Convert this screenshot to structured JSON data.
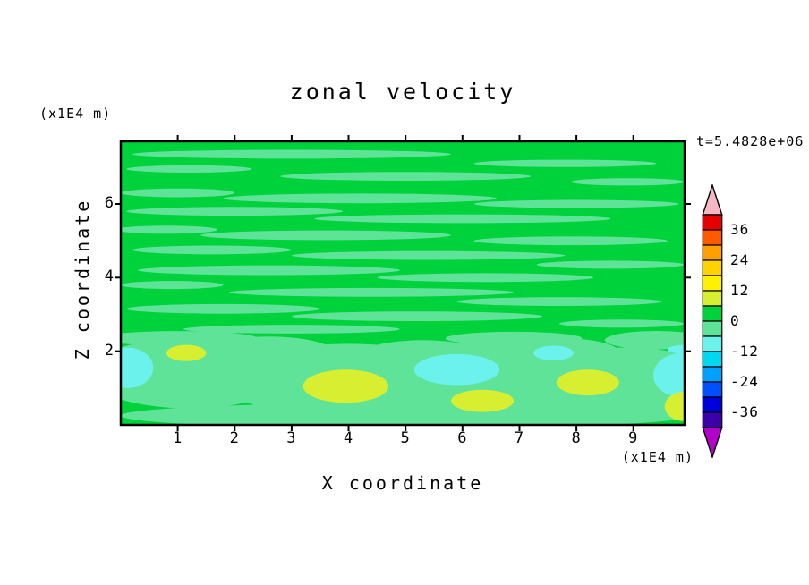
{
  "title": "zonal velocity",
  "time_label": "t=5.4828e+06",
  "axes": {
    "x_label": "X coordinate",
    "x_unit": "(x1E4 m)",
    "y_label": "Z coordinate",
    "y_unit": "(x1E4 m)",
    "x_ticks": [
      1,
      2,
      3,
      4,
      5,
      6,
      7,
      8,
      9
    ],
    "y_ticks": [
      2,
      4,
      6
    ],
    "x_range": [
      0,
      9.9
    ],
    "y_range": [
      0,
      7.7
    ]
  },
  "colorbar": {
    "labels": [
      36,
      24,
      12,
      0,
      -12,
      -24,
      -36
    ],
    "level_step": 6,
    "level_max": 42,
    "level_min": -42,
    "segments": [
      "#e60000",
      "#ff5a00",
      "#ffa000",
      "#ffd200",
      "#fff200",
      "#d8ee30",
      "#00d23c",
      "#5fe398",
      "#6cf2ec",
      "#00d8f0",
      "#00a0ff",
      "#0050ff",
      "#0000dc",
      "#3c00aa"
    ],
    "top_arrow_color": "#f4b8c4",
    "bottom_arrow_color": "#b400c8"
  },
  "chart_data": {
    "type": "filled_contour",
    "title": "zonal velocity",
    "xlabel": "X coordinate (x1E4 m)",
    "ylabel": "Z coordinate (x1E4 m)",
    "x_range": [
      0,
      9.9
    ],
    "z_range": [
      0,
      7.7
    ],
    "level_step": 6,
    "background_band": "0_6",
    "bands": {
      "0_6": "#00d23c",
      "-6_0": "#5fe398",
      "-12_-6": "#6cf2ec",
      "6_12": "#d8ee30"
    },
    "feature_format": [
      "x_center",
      "z_center",
      "rx",
      "rz",
      "band"
    ],
    "features": [
      [
        3.0,
        7.35,
        2.8,
        0.12,
        "-6_0"
      ],
      [
        7.8,
        7.1,
        1.6,
        0.1,
        "-6_0"
      ],
      [
        1.2,
        6.95,
        1.1,
        0.1,
        "-6_0"
      ],
      [
        5.0,
        6.75,
        2.2,
        0.12,
        "-6_0"
      ],
      [
        8.9,
        6.6,
        1.0,
        0.1,
        "-6_0"
      ],
      [
        1.0,
        6.3,
        1.0,
        0.12,
        "-6_0"
      ],
      [
        4.2,
        6.15,
        2.4,
        0.13,
        "-6_0"
      ],
      [
        8.0,
        6.0,
        1.8,
        0.11,
        "-6_0"
      ],
      [
        2.0,
        5.8,
        1.9,
        0.12,
        "-6_0"
      ],
      [
        6.0,
        5.6,
        2.6,
        0.12,
        "-6_0"
      ],
      [
        0.8,
        5.3,
        0.9,
        0.11,
        "-6_0"
      ],
      [
        3.6,
        5.15,
        2.2,
        0.13,
        "-6_0"
      ],
      [
        7.9,
        5.0,
        1.7,
        0.12,
        "-6_0"
      ],
      [
        1.6,
        4.75,
        1.4,
        0.12,
        "-6_0"
      ],
      [
        5.4,
        4.6,
        2.4,
        0.12,
        "-6_0"
      ],
      [
        8.6,
        4.35,
        1.3,
        0.11,
        "-6_0"
      ],
      [
        2.6,
        4.2,
        2.3,
        0.13,
        "-6_0"
      ],
      [
        6.4,
        4.0,
        1.9,
        0.12,
        "-6_0"
      ],
      [
        0.9,
        3.8,
        0.9,
        0.11,
        "-6_0"
      ],
      [
        4.4,
        3.6,
        2.5,
        0.12,
        "-6_0"
      ],
      [
        7.7,
        3.35,
        1.8,
        0.12,
        "-6_0"
      ],
      [
        1.8,
        3.15,
        1.7,
        0.13,
        "-6_0"
      ],
      [
        5.2,
        2.95,
        2.2,
        0.13,
        "-6_0"
      ],
      [
        8.8,
        2.75,
        1.1,
        0.11,
        "-6_0"
      ],
      [
        3.0,
        2.6,
        1.9,
        0.12,
        "-6_0"
      ],
      [
        9.4,
        2.3,
        0.9,
        0.25,
        "-6_0"
      ],
      [
        6.9,
        2.35,
        1.2,
        0.18,
        "-6_0"
      ],
      [
        1.0,
        2.35,
        1.4,
        0.2,
        "-6_0"
      ],
      [
        1.2,
        1.4,
        1.8,
        0.95,
        "-6_0"
      ],
      [
        4.0,
        1.2,
        2.2,
        1.0,
        "-6_0"
      ],
      [
        6.6,
        1.3,
        2.0,
        0.95,
        "-6_0"
      ],
      [
        8.9,
        1.2,
        1.6,
        0.9,
        "-6_0"
      ],
      [
        2.6,
        1.9,
        1.2,
        0.5,
        "-6_0"
      ],
      [
        5.3,
        1.8,
        1.2,
        0.5,
        "-6_0"
      ],
      [
        7.8,
        1.9,
        1.0,
        0.45,
        "-6_0"
      ],
      [
        5.0,
        0.25,
        5.0,
        0.35,
        "-6_0"
      ],
      [
        0.12,
        1.55,
        0.45,
        0.55,
        "-12_-6"
      ],
      [
        5.9,
        1.5,
        0.75,
        0.42,
        "-12_-6"
      ],
      [
        9.85,
        1.35,
        0.5,
        0.6,
        "-12_-6"
      ],
      [
        7.6,
        1.95,
        0.35,
        0.2,
        "-12_-6"
      ],
      [
        9.9,
        2.05,
        0.3,
        0.12,
        "-12_-6"
      ],
      [
        1.15,
        1.95,
        0.35,
        0.22,
        "6_12"
      ],
      [
        3.95,
        1.05,
        0.75,
        0.45,
        "6_12"
      ],
      [
        6.35,
        0.65,
        0.55,
        0.3,
        "6_12"
      ],
      [
        8.2,
        1.15,
        0.55,
        0.35,
        "6_12"
      ],
      [
        9.9,
        0.5,
        0.35,
        0.4,
        "6_12"
      ]
    ]
  }
}
